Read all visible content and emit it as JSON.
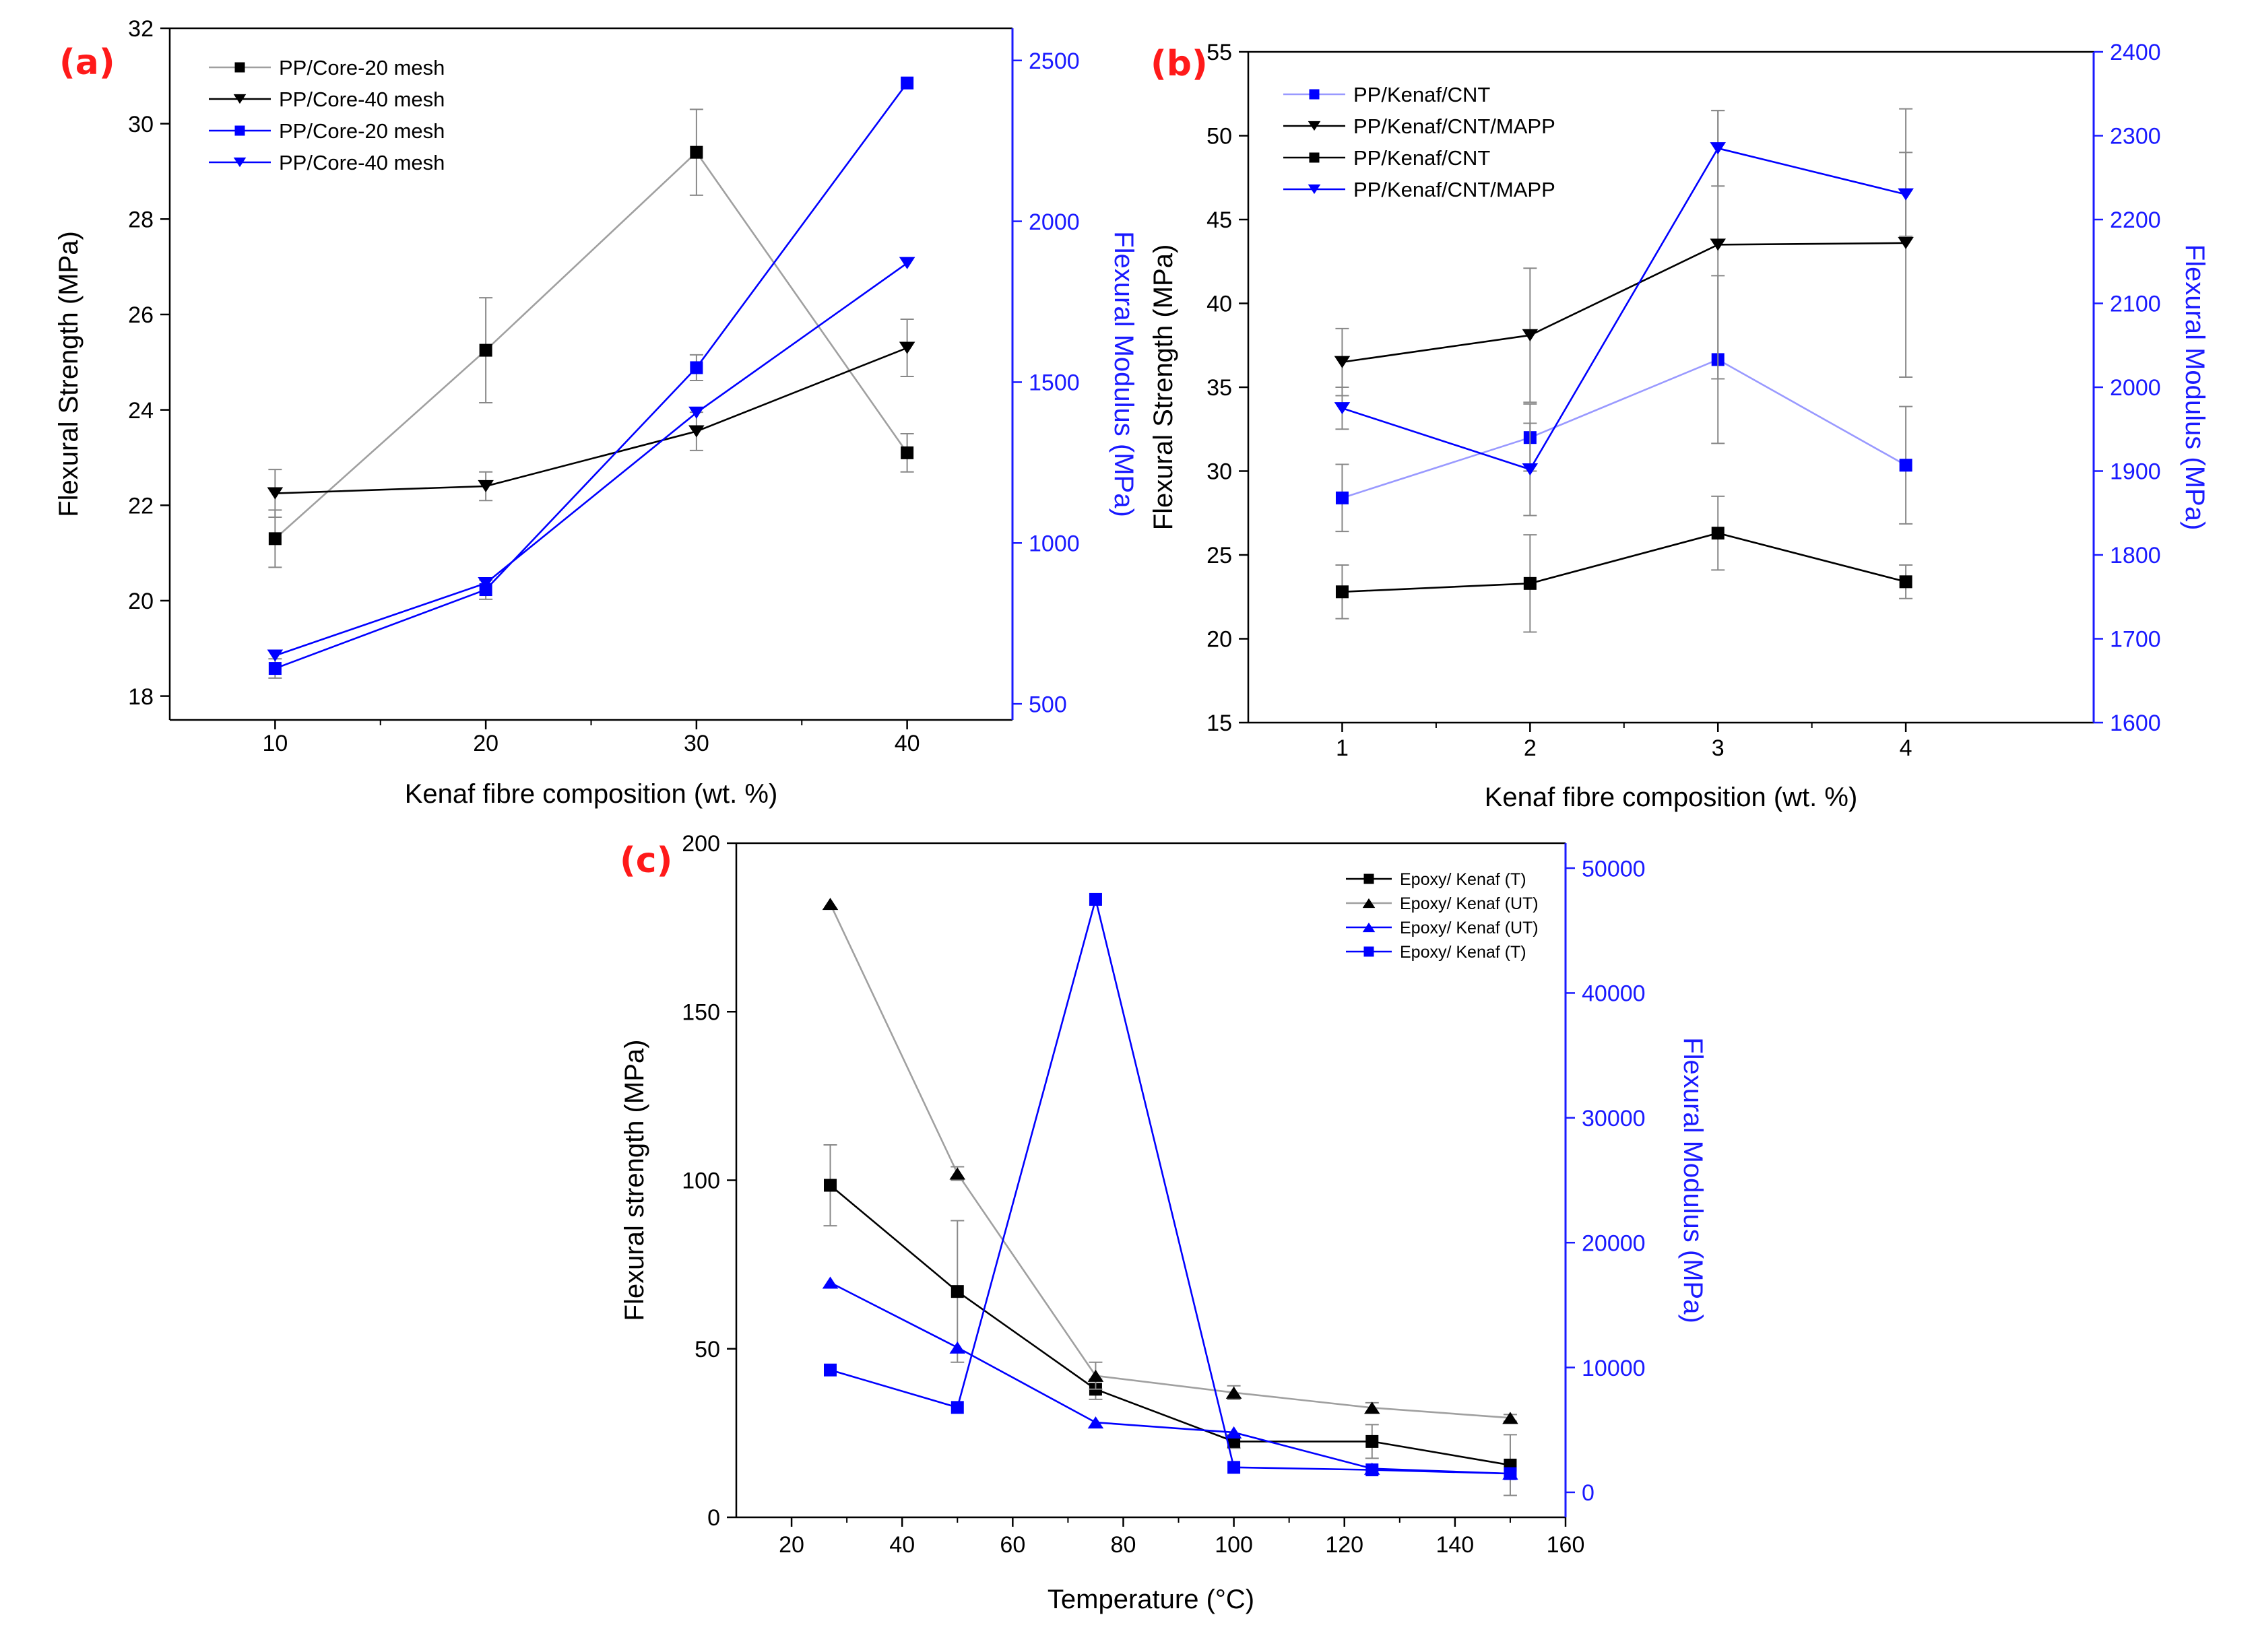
{
  "chart_data": [
    {
      "type": "line",
      "panel_label": "(a)",
      "xlabel": "Kenaf fibre composition (wt. %)",
      "ylabel_left": "Flexural Strength (MPa)",
      "ylabel_right": "Flexural Modulus (MPa)",
      "xlim": [
        5,
        45
      ],
      "ylim_left": [
        17.5,
        32
      ],
      "ylim_right": [
        450,
        2600
      ],
      "x_ticks": [
        "10",
        "20",
        "30",
        "40"
      ],
      "y_left_ticks": [
        "18",
        "20",
        "22",
        "24",
        "26",
        "28",
        "30",
        "32"
      ],
      "y_right_ticks": [
        "500",
        "1000",
        "1500",
        "2000",
        "2500"
      ],
      "legend_position": "top-left",
      "x": [
        10,
        20,
        30,
        40
      ],
      "series": [
        {
          "name": "PP/Core-20 mesh",
          "axis": "left",
          "color": "#a0a0a0",
          "marker_color": "#000000",
          "marker": "square",
          "values": [
            21.3,
            25.25,
            29.4,
            23.1
          ],
          "error": [
            0.6,
            1.1,
            0.9,
            0.4
          ]
        },
        {
          "name": "PP/Core-40 mesh",
          "axis": "left",
          "color": "#000000",
          "marker_color": "#000000",
          "marker": "triangle-down",
          "values": [
            22.25,
            22.4,
            23.55,
            25.3
          ],
          "error": [
            0.5,
            0.3,
            0.4,
            0.6
          ]
        },
        {
          "name": "PP/Core-20 mesh",
          "axis": "right",
          "color": "#0000ff",
          "marker_color": "#0000ff",
          "marker": "square",
          "values": [
            610,
            855,
            1545,
            2430
          ],
          "error": [
            30,
            30,
            40,
            0
          ]
        },
        {
          "name": "PP/Core-40 mesh",
          "axis": "right",
          "color": "#0000ff",
          "marker_color": "#0000ff",
          "marker": "triangle-down",
          "values": [
            650,
            875,
            1405,
            1870
          ],
          "error": [
            0,
            0,
            0,
            0
          ]
        }
      ]
    },
    {
      "type": "line",
      "panel_label": "(b)",
      "xlabel": "Kenaf fibre composition (wt. %)",
      "ylabel_left": "Flexural Strength (MPa)",
      "ylabel_right": "Flexural Modulus (MPa)",
      "xlim": [
        0.5,
        5
      ],
      "ylim_left": [
        15,
        55
      ],
      "ylim_right": [
        1600,
        2400
      ],
      "x_ticks": [
        "1",
        "2",
        "3",
        "4"
      ],
      "y_left_ticks": [
        "15",
        "20",
        "25",
        "30",
        "35",
        "40",
        "45",
        "50",
        "55"
      ],
      "y_right_ticks": [
        "1600",
        "1700",
        "1800",
        "1900",
        "2000",
        "2100",
        "2200",
        "2300",
        "2400"
      ],
      "legend_position": "top-left",
      "x": [
        1,
        2,
        3,
        4
      ],
      "series": [
        {
          "name": "PP/Kenaf/CNT",
          "axis": "right",
          "color": "#9999ff",
          "marker_color": "#0000ff",
          "marker": "square",
          "values": [
            1868,
            1940,
            2033,
            1907
          ],
          "error": [
            40,
            40,
            100,
            70
          ]
        },
        {
          "name": "PP/Kenaf/CNT/MAPP",
          "axis": "left",
          "color": "#000000",
          "marker_color": "#000000",
          "marker": "triangle-down",
          "values": [
            36.5,
            38.1,
            43.5,
            43.6
          ],
          "error": [
            2,
            4,
            8,
            8
          ]
        },
        {
          "name": "PP/Kenaf/CNT",
          "axis": "left",
          "color": "#000000",
          "marker_color": "#000000",
          "marker": "square",
          "values": [
            22.8,
            23.3,
            26.3,
            23.4
          ],
          "error": [
            1.6,
            2.9,
            2.2,
            1.0
          ]
        },
        {
          "name": "PP/Kenaf/CNT/MAPP",
          "axis": "right",
          "color": "#0000ff",
          "marker_color": "#0000ff",
          "marker": "triangle-down",
          "values": [
            1975,
            1902,
            2285,
            2230
          ],
          "error": [
            25,
            55,
            45,
            50
          ]
        }
      ]
    },
    {
      "type": "line",
      "panel_label": "(c)",
      "xlabel": "Temperature (°C)",
      "ylabel_left": "Flexural strength (MPa)",
      "ylabel_right": "Flexural Modulus (MPa)",
      "xlim": [
        10,
        160
      ],
      "ylim_left": [
        0,
        200
      ],
      "ylim_right": [
        -2000,
        52000
      ],
      "x_ticks": [
        "20",
        "40",
        "60",
        "80",
        "100",
        "120",
        "140",
        "160"
      ],
      "y_left_ticks": [
        "0",
        "50",
        "100",
        "150",
        "200"
      ],
      "y_right_ticks": [
        "0",
        "10000",
        "20000",
        "30000",
        "40000",
        "50000"
      ],
      "legend_position": "top-right",
      "x": [
        27,
        50,
        75,
        100,
        125,
        150
      ],
      "series": [
        {
          "name": "Epoxy/ Kenaf (T)",
          "axis": "left",
          "color": "#000000",
          "marker_color": "#000000",
          "marker": "square",
          "values": [
            98.5,
            67,
            38,
            22.5,
            22.5,
            15.5
          ],
          "error": [
            12,
            21,
            3,
            2,
            5,
            9
          ]
        },
        {
          "name": "Epoxy/ Kenaf (UT)",
          "axis": "left",
          "color": "#a0a0a0",
          "marker_color": "#000000",
          "marker": "triangle-up",
          "values": [
            182,
            102,
            42,
            37,
            32.5,
            29.5
          ],
          "error": [
            0,
            2,
            4,
            2,
            1.5,
            1
          ]
        },
        {
          "name": "Epoxy/ Kenaf (UT)",
          "axis": "right",
          "color": "#0000ff",
          "marker_color": "#0000ff",
          "marker": "triangle-up",
          "values": [
            16800,
            11600,
            5600,
            4800,
            1900,
            1500
          ],
          "error": [
            0,
            0,
            0,
            0,
            0,
            0
          ]
        },
        {
          "name": "Epoxy/ Kenaf (T)",
          "axis": "right",
          "color": "#0000ff",
          "marker_color": "#0000ff",
          "marker": "square",
          "values": [
            9800,
            6800,
            47500,
            2000,
            1800,
            1500
          ],
          "error": [
            0,
            0,
            0,
            0,
            0,
            0
          ]
        }
      ]
    }
  ]
}
